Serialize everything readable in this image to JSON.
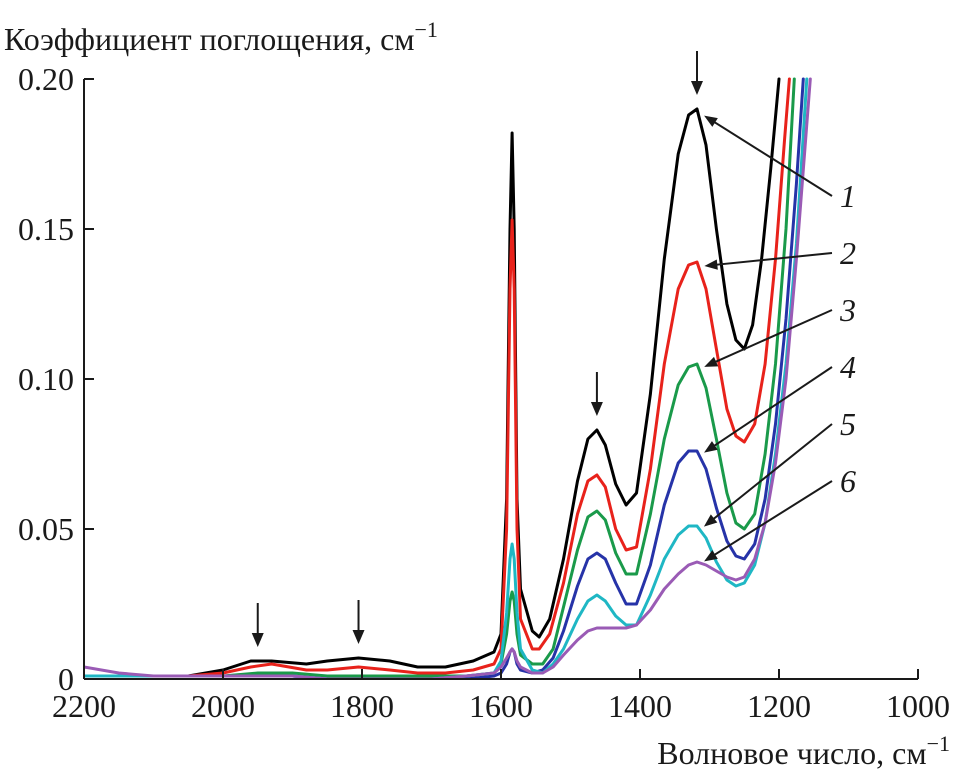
{
  "chart_data": {
    "type": "line",
    "title": "",
    "ylabel": "Коэффициент поглощения, см",
    "ylabel_superscript": "−1",
    "xlabel": "Волновое число, см",
    "xlabel_superscript": "−1",
    "xlim": [
      2200,
      1000
    ],
    "ylim": [
      0,
      0.2
    ],
    "x_reversed": true,
    "x_ticks": [
      2200,
      2000,
      1800,
      1600,
      1400,
      1200,
      1000
    ],
    "x_tick_labels": [
      "2200",
      "2000",
      "1800",
      "1600",
      "1400",
      "1200",
      "1000"
    ],
    "y_ticks": [
      0,
      0.05,
      0.1,
      0.15,
      0.2
    ],
    "y_tick_labels": [
      "0",
      "0.05",
      "0.10",
      "0.15",
      "0.20"
    ],
    "grid": false,
    "legend": "none",
    "peak_markers_x": [
      1950,
      1805,
      1462,
      1318
    ],
    "series": [
      {
        "name": "1",
        "color": "#000000",
        "label_value_x": 1316,
        "points": [
          [
            2200,
            0.001
          ],
          [
            2120,
            0.001
          ],
          [
            2050,
            0.001
          ],
          [
            2000,
            0.003
          ],
          [
            1960,
            0.006
          ],
          [
            1930,
            0.006
          ],
          [
            1880,
            0.005
          ],
          [
            1850,
            0.006
          ],
          [
            1805,
            0.007
          ],
          [
            1760,
            0.006
          ],
          [
            1720,
            0.004
          ],
          [
            1680,
            0.004
          ],
          [
            1640,
            0.006
          ],
          [
            1610,
            0.009
          ],
          [
            1600,
            0.015
          ],
          [
            1592,
            0.06
          ],
          [
            1587,
            0.15
          ],
          [
            1584,
            0.182
          ],
          [
            1581,
            0.15
          ],
          [
            1577,
            0.06
          ],
          [
            1572,
            0.03
          ],
          [
            1555,
            0.016
          ],
          [
            1545,
            0.014
          ],
          [
            1530,
            0.02
          ],
          [
            1510,
            0.04
          ],
          [
            1490,
            0.066
          ],
          [
            1475,
            0.08
          ],
          [
            1462,
            0.083
          ],
          [
            1450,
            0.078
          ],
          [
            1435,
            0.065
          ],
          [
            1420,
            0.058
          ],
          [
            1405,
            0.062
          ],
          [
            1385,
            0.095
          ],
          [
            1365,
            0.14
          ],
          [
            1345,
            0.175
          ],
          [
            1330,
            0.188
          ],
          [
            1318,
            0.19
          ],
          [
            1305,
            0.178
          ],
          [
            1290,
            0.15
          ],
          [
            1275,
            0.125
          ],
          [
            1262,
            0.113
          ],
          [
            1250,
            0.11
          ],
          [
            1238,
            0.118
          ],
          [
            1225,
            0.14
          ],
          [
            1212,
            0.17
          ],
          [
            1200,
            0.2
          ]
        ]
      },
      {
        "name": "2",
        "color": "#e8221b",
        "label_value_x": 1316,
        "points": [
          [
            2200,
            0.001
          ],
          [
            2120,
            0.001
          ],
          [
            2050,
            0.001
          ],
          [
            2000,
            0.002
          ],
          [
            1960,
            0.004
          ],
          [
            1930,
            0.005
          ],
          [
            1880,
            0.003
          ],
          [
            1850,
            0.003
          ],
          [
            1805,
            0.004
          ],
          [
            1760,
            0.003
          ],
          [
            1720,
            0.002
          ],
          [
            1680,
            0.002
          ],
          [
            1640,
            0.003
          ],
          [
            1610,
            0.005
          ],
          [
            1600,
            0.01
          ],
          [
            1592,
            0.05
          ],
          [
            1587,
            0.13
          ],
          [
            1584,
            0.153
          ],
          [
            1581,
            0.13
          ],
          [
            1577,
            0.05
          ],
          [
            1572,
            0.02
          ],
          [
            1555,
            0.01
          ],
          [
            1545,
            0.01
          ],
          [
            1530,
            0.015
          ],
          [
            1510,
            0.032
          ],
          [
            1490,
            0.055
          ],
          [
            1475,
            0.066
          ],
          [
            1462,
            0.068
          ],
          [
            1450,
            0.064
          ],
          [
            1435,
            0.05
          ],
          [
            1420,
            0.043
          ],
          [
            1405,
            0.044
          ],
          [
            1385,
            0.07
          ],
          [
            1365,
            0.105
          ],
          [
            1345,
            0.13
          ],
          [
            1330,
            0.138
          ],
          [
            1318,
            0.139
          ],
          [
            1305,
            0.13
          ],
          [
            1290,
            0.11
          ],
          [
            1275,
            0.09
          ],
          [
            1262,
            0.081
          ],
          [
            1250,
            0.079
          ],
          [
            1235,
            0.085
          ],
          [
            1220,
            0.105
          ],
          [
            1205,
            0.14
          ],
          [
            1192,
            0.18
          ],
          [
            1185,
            0.2
          ]
        ]
      },
      {
        "name": "3",
        "color": "#1a9a4a",
        "label_value_x": 1316,
        "points": [
          [
            2200,
            0.001
          ],
          [
            2120,
            0.001
          ],
          [
            2050,
            0.001
          ],
          [
            2000,
            0.001
          ],
          [
            1950,
            0.002
          ],
          [
            1900,
            0.002
          ],
          [
            1850,
            0.001
          ],
          [
            1800,
            0.001
          ],
          [
            1750,
            0.001
          ],
          [
            1700,
            0.001
          ],
          [
            1650,
            0.001
          ],
          [
            1610,
            0.002
          ],
          [
            1600,
            0.005
          ],
          [
            1592,
            0.015
          ],
          [
            1587,
            0.026
          ],
          [
            1584,
            0.029
          ],
          [
            1581,
            0.026
          ],
          [
            1577,
            0.015
          ],
          [
            1572,
            0.008
          ],
          [
            1555,
            0.005
          ],
          [
            1540,
            0.005
          ],
          [
            1525,
            0.01
          ],
          [
            1510,
            0.024
          ],
          [
            1490,
            0.043
          ],
          [
            1475,
            0.054
          ],
          [
            1462,
            0.056
          ],
          [
            1450,
            0.053
          ],
          [
            1435,
            0.042
          ],
          [
            1420,
            0.035
          ],
          [
            1405,
            0.035
          ],
          [
            1385,
            0.055
          ],
          [
            1365,
            0.08
          ],
          [
            1345,
            0.098
          ],
          [
            1330,
            0.104
          ],
          [
            1318,
            0.105
          ],
          [
            1305,
            0.097
          ],
          [
            1290,
            0.08
          ],
          [
            1275,
            0.062
          ],
          [
            1262,
            0.052
          ],
          [
            1250,
            0.05
          ],
          [
            1235,
            0.055
          ],
          [
            1220,
            0.075
          ],
          [
            1205,
            0.105
          ],
          [
            1190,
            0.15
          ],
          [
            1178,
            0.2
          ]
        ]
      },
      {
        "name": "4",
        "color": "#2633a8",
        "label_value_x": 1316,
        "points": [
          [
            2200,
            0.001
          ],
          [
            2120,
            0.001
          ],
          [
            2050,
            0.001
          ],
          [
            2000,
            0.001
          ],
          [
            1950,
            0.001
          ],
          [
            1900,
            0.001
          ],
          [
            1850,
            0.0
          ],
          [
            1800,
            0.0
          ],
          [
            1750,
            0.0
          ],
          [
            1700,
            0.0
          ],
          [
            1650,
            0.0
          ],
          [
            1610,
            0.001
          ],
          [
            1600,
            0.002
          ],
          [
            1592,
            0.005
          ],
          [
            1587,
            0.009
          ],
          [
            1584,
            0.01
          ],
          [
            1581,
            0.009
          ],
          [
            1577,
            0.005
          ],
          [
            1572,
            0.003
          ],
          [
            1555,
            0.002
          ],
          [
            1540,
            0.003
          ],
          [
            1525,
            0.007
          ],
          [
            1510,
            0.016
          ],
          [
            1490,
            0.031
          ],
          [
            1475,
            0.04
          ],
          [
            1462,
            0.042
          ],
          [
            1450,
            0.04
          ],
          [
            1435,
            0.032
          ],
          [
            1420,
            0.025
          ],
          [
            1405,
            0.025
          ],
          [
            1385,
            0.038
          ],
          [
            1365,
            0.058
          ],
          [
            1345,
            0.072
          ],
          [
            1330,
            0.076
          ],
          [
            1318,
            0.076
          ],
          [
            1305,
            0.07
          ],
          [
            1290,
            0.057
          ],
          [
            1275,
            0.046
          ],
          [
            1262,
            0.041
          ],
          [
            1250,
            0.04
          ],
          [
            1235,
            0.045
          ],
          [
            1220,
            0.06
          ],
          [
            1205,
            0.085
          ],
          [
            1190,
            0.12
          ],
          [
            1175,
            0.165
          ],
          [
            1165,
            0.2
          ]
        ]
      },
      {
        "name": "5",
        "color": "#1fb7c4",
        "label_value_x": 1316,
        "points": [
          [
            2200,
            0.001
          ],
          [
            2120,
            0.001
          ],
          [
            2050,
            0.001
          ],
          [
            2000,
            0.001
          ],
          [
            1950,
            0.001
          ],
          [
            1900,
            0.001
          ],
          [
            1850,
            0.0
          ],
          [
            1800,
            0.0
          ],
          [
            1750,
            0.0
          ],
          [
            1700,
            0.0
          ],
          [
            1650,
            0.001
          ],
          [
            1610,
            0.002
          ],
          [
            1600,
            0.006
          ],
          [
            1592,
            0.022
          ],
          [
            1587,
            0.04
          ],
          [
            1584,
            0.045
          ],
          [
            1581,
            0.04
          ],
          [
            1577,
            0.022
          ],
          [
            1572,
            0.01
          ],
          [
            1555,
            0.003
          ],
          [
            1540,
            0.002
          ],
          [
            1525,
            0.005
          ],
          [
            1510,
            0.01
          ],
          [
            1490,
            0.02
          ],
          [
            1475,
            0.026
          ],
          [
            1462,
            0.028
          ],
          [
            1450,
            0.026
          ],
          [
            1435,
            0.021
          ],
          [
            1420,
            0.018
          ],
          [
            1405,
            0.018
          ],
          [
            1385,
            0.028
          ],
          [
            1365,
            0.04
          ],
          [
            1345,
            0.048
          ],
          [
            1330,
            0.051
          ],
          [
            1318,
            0.051
          ],
          [
            1305,
            0.047
          ],
          [
            1290,
            0.039
          ],
          [
            1275,
            0.033
          ],
          [
            1262,
            0.031
          ],
          [
            1250,
            0.032
          ],
          [
            1235,
            0.038
          ],
          [
            1220,
            0.052
          ],
          [
            1205,
            0.075
          ],
          [
            1190,
            0.105
          ],
          [
            1175,
            0.145
          ],
          [
            1160,
            0.2
          ]
        ]
      },
      {
        "name": "6",
        "color": "#9a5bb5",
        "label_value_x": 1316,
        "points": [
          [
            2200,
            0.004
          ],
          [
            2150,
            0.002
          ],
          [
            2100,
            0.001
          ],
          [
            2050,
            0.001
          ],
          [
            2000,
            0.001
          ],
          [
            1950,
            0.001
          ],
          [
            1900,
            0.001
          ],
          [
            1850,
            0.0
          ],
          [
            1800,
            0.0
          ],
          [
            1750,
            0.0
          ],
          [
            1700,
            0.0
          ],
          [
            1650,
            0.001
          ],
          [
            1610,
            0.002
          ],
          [
            1600,
            0.004
          ],
          [
            1592,
            0.007
          ],
          [
            1587,
            0.009
          ],
          [
            1584,
            0.01
          ],
          [
            1581,
            0.009
          ],
          [
            1577,
            0.006
          ],
          [
            1572,
            0.004
          ],
          [
            1555,
            0.002
          ],
          [
            1540,
            0.002
          ],
          [
            1525,
            0.004
          ],
          [
            1510,
            0.008
          ],
          [
            1490,
            0.013
          ],
          [
            1475,
            0.016
          ],
          [
            1462,
            0.017
          ],
          [
            1450,
            0.017
          ],
          [
            1435,
            0.017
          ],
          [
            1420,
            0.017
          ],
          [
            1405,
            0.018
          ],
          [
            1385,
            0.023
          ],
          [
            1365,
            0.03
          ],
          [
            1345,
            0.035
          ],
          [
            1330,
            0.038
          ],
          [
            1318,
            0.039
          ],
          [
            1305,
            0.038
          ],
          [
            1290,
            0.036
          ],
          [
            1275,
            0.034
          ],
          [
            1262,
            0.033
          ],
          [
            1250,
            0.034
          ],
          [
            1235,
            0.04
          ],
          [
            1220,
            0.052
          ],
          [
            1205,
            0.072
          ],
          [
            1190,
            0.1
          ],
          [
            1175,
            0.14
          ],
          [
            1155,
            0.2
          ]
        ]
      }
    ]
  }
}
